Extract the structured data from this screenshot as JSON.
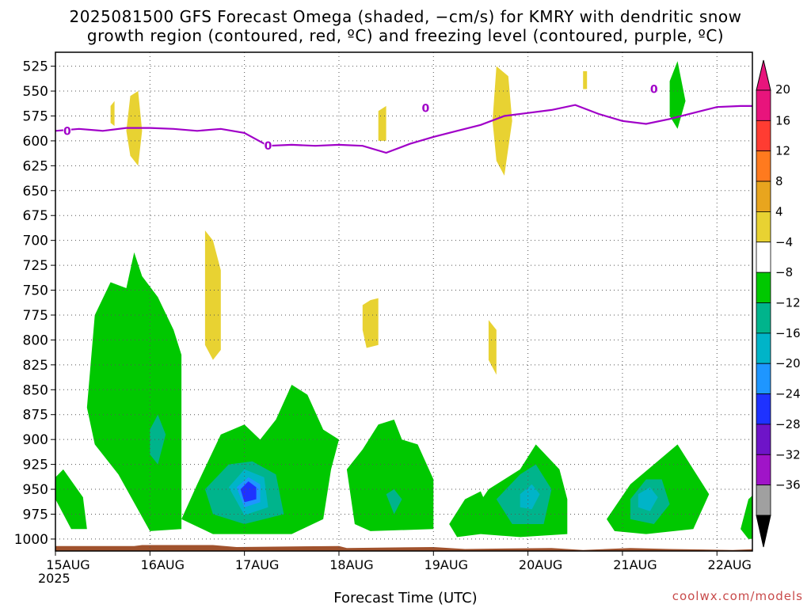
{
  "title_line1": "2025081500 GFS Forecast Omega (shaded, −cm/s) for KMRY with dendritic snow",
  "title_line2": "growth region (contoured, red, ºC) and freezing level (contoured, purple, ºC)",
  "credit": "coolwx.com/models",
  "colors": {
    "grid": "#555555",
    "freezing_line": "#a000c8",
    "terrain": "#a0522d"
  },
  "chart_data": {
    "type": "heatmap",
    "xlabel": "Forecast Time (UTC)",
    "ylabel": "",
    "x_ticks": [
      "15AUG",
      "16AUG",
      "17AUG",
      "18AUG",
      "19AUG",
      "20AUG",
      "21AUG",
      "22AUG"
    ],
    "x_sub_label": "2025",
    "x_range_hours": [
      0,
      177
    ],
    "y_ticks": [
      525,
      550,
      575,
      600,
      625,
      650,
      675,
      700,
      725,
      750,
      775,
      800,
      825,
      850,
      875,
      900,
      925,
      950,
      975,
      1000
    ],
    "y_range_hpa": [
      511,
      1012
    ],
    "grid": true,
    "colorbar": {
      "labels": [
        "20",
        "16",
        "12",
        "8",
        "4",
        "−4",
        "−8",
        "−12",
        "−16",
        "−20",
        "−24",
        "−28",
        "−32",
        "−36"
      ],
      "colors": [
        "#e8147c",
        "#ff3c32",
        "#ff7a1e",
        "#e8a51e",
        "#e8d232",
        "#ffffff",
        "#00c800",
        "#00b48c",
        "#00b4c8",
        "#1e96ff",
        "#1e32ff",
        "#6e14c8",
        "#a014c8",
        "#a0a0a0"
      ]
    },
    "freezing_level": {
      "label": "0",
      "label_at": [
        [
          3,
          590
        ],
        [
          54,
          605
        ],
        [
          94,
          567
        ],
        [
          152,
          548
        ]
      ],
      "points": [
        [
          0,
          590
        ],
        [
          6,
          588
        ],
        [
          12,
          590
        ],
        [
          18,
          587
        ],
        [
          24,
          587
        ],
        [
          30,
          588
        ],
        [
          36,
          590
        ],
        [
          42,
          588
        ],
        [
          48,
          592
        ],
        [
          54,
          605
        ],
        [
          60,
          604
        ],
        [
          66,
          605
        ],
        [
          72,
          604
        ],
        [
          78,
          605
        ],
        [
          84,
          612
        ],
        [
          90,
          603
        ],
        [
          96,
          596
        ],
        [
          102,
          590
        ],
        [
          108,
          584
        ],
        [
          114,
          575
        ],
        [
          120,
          572
        ],
        [
          126,
          569
        ],
        [
          132,
          564
        ],
        [
          138,
          573
        ],
        [
          144,
          580
        ],
        [
          150,
          583
        ],
        [
          156,
          578
        ],
        [
          162,
          572
        ],
        [
          168,
          566
        ],
        [
          174,
          565
        ],
        [
          180,
          565
        ],
        [
          186,
          563
        ],
        [
          192,
          558
        ],
        [
          198,
          553
        ],
        [
          204,
          550
        ],
        [
          210,
          550
        ],
        [
          216,
          550
        ],
        [
          219,
          541
        ],
        [
          222,
          550
        ],
        [
          228,
          549
        ],
        [
          234,
          548
        ],
        [
          240,
          549
        ],
        [
          246,
          550
        ],
        [
          252,
          550
        ],
        [
          258,
          549
        ],
        [
          264,
          550
        ],
        [
          272,
          555
        ]
      ]
    },
    "omega_regions": [
      {
        "bin": "-8 to -4",
        "color": "#00c800",
        "points": [
          [
            2,
            930
          ],
          [
            7,
            958
          ],
          [
            8,
            990
          ],
          [
            4,
            990
          ],
          [
            0,
            960
          ],
          [
            0,
            938
          ]
        ]
      },
      {
        "bin": "-8 to -4",
        "color": "#00c800",
        "points": [
          [
            8,
            868
          ],
          [
            10,
            775
          ],
          [
            14,
            742
          ],
          [
            18,
            748
          ],
          [
            20,
            712
          ],
          [
            22,
            736
          ],
          [
            26,
            757
          ],
          [
            30,
            790
          ],
          [
            32,
            815
          ],
          [
            32,
            990
          ],
          [
            24,
            992
          ],
          [
            16,
            935
          ],
          [
            10,
            905
          ]
        ]
      },
      {
        "bin": "-8 to -4",
        "color": "#00c800",
        "points": [
          [
            32,
            980
          ],
          [
            36,
            945
          ],
          [
            42,
            895
          ],
          [
            48,
            885
          ],
          [
            52,
            900
          ],
          [
            56,
            880
          ],
          [
            60,
            845
          ],
          [
            64,
            855
          ],
          [
            68,
            890
          ],
          [
            72,
            900
          ],
          [
            70,
            930
          ],
          [
            68,
            980
          ],
          [
            60,
            995
          ],
          [
            40,
            995
          ]
        ]
      },
      {
        "bin": "-8 to -4",
        "color": "#00c800",
        "points": [
          [
            74,
            930
          ],
          [
            78,
            910
          ],
          [
            82,
            885
          ],
          [
            86,
            880
          ],
          [
            88,
            900
          ],
          [
            92,
            905
          ],
          [
            96,
            940
          ],
          [
            96,
            990
          ],
          [
            80,
            992
          ],
          [
            76,
            985
          ]
        ]
      },
      {
        "bin": "-8 to -4",
        "color": "#00c800",
        "points": [
          [
            100,
            985
          ],
          [
            104,
            960
          ],
          [
            108,
            952
          ],
          [
            110,
            970
          ],
          [
            108,
            995
          ],
          [
            102,
            998
          ]
        ]
      },
      {
        "bin": "-8 to -4",
        "color": "#00c800",
        "points": [
          [
            104,
            985
          ],
          [
            110,
            950
          ],
          [
            118,
            930
          ],
          [
            122,
            905
          ],
          [
            128,
            930
          ],
          [
            130,
            960
          ],
          [
            130,
            995
          ],
          [
            118,
            998
          ],
          [
            108,
            995
          ]
        ]
      },
      {
        "bin": "-8 to -4",
        "color": "#00c800",
        "points": [
          [
            140,
            980
          ],
          [
            146,
            945
          ],
          [
            152,
            925
          ],
          [
            158,
            905
          ],
          [
            162,
            930
          ],
          [
            166,
            955
          ],
          [
            162,
            990
          ],
          [
            150,
            995
          ],
          [
            142,
            992
          ]
        ]
      },
      {
        "bin": "-8 to -4",
        "color": "#00c800",
        "points": [
          [
            174,
            990
          ],
          [
            176,
            960
          ],
          [
            180,
            945
          ],
          [
            186,
            940
          ],
          [
            188,
            965
          ],
          [
            186,
            998
          ],
          [
            176,
            1000
          ]
        ]
      },
      {
        "bin": "-8 to -4",
        "color": "#00c800",
        "points": [
          [
            156,
            540
          ],
          [
            158,
            520
          ],
          [
            160,
            560
          ],
          [
            158,
            588
          ],
          [
            156,
            575
          ]
        ]
      },
      {
        "bin": "-8 to -4",
        "color": "#00c800",
        "points": [
          [
            186,
            530
          ],
          [
            189,
            530
          ],
          [
            189,
            545
          ],
          [
            186,
            545
          ]
        ]
      },
      {
        "bin": "-8 to -4",
        "color": "#00c800",
        "points": [
          [
            221,
            600
          ],
          [
            224,
            600
          ],
          [
            224,
            685
          ],
          [
            221,
            685
          ]
        ]
      },
      {
        "bin": "-12 to -8",
        "color": "#00b48c",
        "points": [
          [
            38,
            950
          ],
          [
            44,
            925
          ],
          [
            50,
            922
          ],
          [
            56,
            935
          ],
          [
            58,
            975
          ],
          [
            48,
            985
          ],
          [
            40,
            975
          ]
        ]
      },
      {
        "bin": "-12 to -8",
        "color": "#00b48c",
        "points": [
          [
            24,
            890
          ],
          [
            26,
            875
          ],
          [
            28,
            895
          ],
          [
            26,
            925
          ],
          [
            24,
            915
          ]
        ]
      },
      {
        "bin": "-12 to -8",
        "color": "#00b48c",
        "points": [
          [
            112,
            960
          ],
          [
            118,
            935
          ],
          [
            122,
            925
          ],
          [
            126,
            950
          ],
          [
            124,
            985
          ],
          [
            116,
            985
          ]
        ]
      },
      {
        "bin": "-12 to -8",
        "color": "#00b48c",
        "points": [
          [
            146,
            960
          ],
          [
            150,
            940
          ],
          [
            154,
            940
          ],
          [
            156,
            965
          ],
          [
            152,
            985
          ],
          [
            146,
            980
          ]
        ]
      },
      {
        "bin": "-12 to -8",
        "color": "#00b48c",
        "points": [
          [
            178,
            965
          ],
          [
            182,
            955
          ],
          [
            184,
            970
          ],
          [
            182,
            985
          ],
          [
            178,
            985
          ]
        ]
      },
      {
        "bin": "-12 to -8",
        "color": "#00b48c",
        "points": [
          [
            84,
            955
          ],
          [
            86,
            950
          ],
          [
            88,
            960
          ],
          [
            86,
            975
          ]
        ]
      },
      {
        "bin": "-16 to -12",
        "color": "#00b4c8",
        "points": [
          [
            44,
            948
          ],
          [
            48,
            930
          ],
          [
            53,
            938
          ],
          [
            54,
            968
          ],
          [
            48,
            976
          ]
        ]
      },
      {
        "bin": "-16 to -12",
        "color": "#00b4c8",
        "points": [
          [
            118,
            955
          ],
          [
            121,
            945
          ],
          [
            123,
            955
          ],
          [
            121,
            970
          ],
          [
            118,
            968
          ]
        ]
      },
      {
        "bin": "-16 to -12",
        "color": "#00b4c8",
        "points": [
          [
            148,
            955
          ],
          [
            151,
            948
          ],
          [
            153,
            958
          ],
          [
            151,
            972
          ],
          [
            148,
            968
          ]
        ]
      },
      {
        "bin": "-20 to -16",
        "color": "#1e96ff",
        "points": [
          [
            46,
            948
          ],
          [
            49,
            938
          ],
          [
            52,
            945
          ],
          [
            52,
            963
          ],
          [
            48,
            968
          ]
        ]
      },
      {
        "bin": "-24 to -20",
        "color": "#1e32ff",
        "points": [
          [
            47,
            950
          ],
          [
            49,
            942
          ],
          [
            51,
            948
          ],
          [
            51,
            960
          ],
          [
            48,
            963
          ]
        ]
      },
      {
        "bin": "4 to 8",
        "color": "#e8d232",
        "points": [
          [
            19,
            555
          ],
          [
            21,
            550
          ],
          [
            22,
            590
          ],
          [
            21,
            625
          ],
          [
            19,
            615
          ],
          [
            18,
            590
          ]
        ]
      },
      {
        "bin": "4 to 8",
        "color": "#e8d232",
        "points": [
          [
            14,
            565
          ],
          [
            15,
            560
          ],
          [
            15,
            585
          ],
          [
            14,
            582
          ]
        ]
      },
      {
        "bin": "4 to 8",
        "color": "#e8d232",
        "points": [
          [
            38,
            690
          ],
          [
            40,
            700
          ],
          [
            42,
            730
          ],
          [
            42,
            810
          ],
          [
            40,
            820
          ],
          [
            38,
            805
          ],
          [
            38,
            745
          ]
        ]
      },
      {
        "bin": "4 to 8",
        "color": "#e8d232",
        "points": [
          [
            82,
            570
          ],
          [
            84,
            565
          ],
          [
            84,
            600
          ],
          [
            82,
            600
          ]
        ]
      },
      {
        "bin": "4 to 8",
        "color": "#e8d232",
        "points": [
          [
            78,
            765
          ],
          [
            80,
            760
          ],
          [
            82,
            758
          ],
          [
            82,
            805
          ],
          [
            79,
            808
          ],
          [
            78,
            790
          ]
        ]
      },
      {
        "bin": "4 to 8",
        "color": "#e8d232",
        "points": [
          [
            112,
            525
          ],
          [
            115,
            535
          ],
          [
            116,
            580
          ],
          [
            114,
            635
          ],
          [
            112,
            620
          ],
          [
            111,
            580
          ]
        ]
      },
      {
        "bin": "4 to 8",
        "color": "#e8d232",
        "points": [
          [
            110,
            780
          ],
          [
            112,
            790
          ],
          [
            112,
            835
          ],
          [
            110,
            820
          ]
        ]
      },
      {
        "bin": "4 to 8",
        "color": "#e8d232",
        "points": [
          [
            134,
            530
          ],
          [
            135,
            530
          ],
          [
            135,
            548
          ],
          [
            134,
            548
          ]
        ]
      },
      {
        "bin": "4 to 8",
        "color": "#e8d232",
        "points": [
          [
            242,
            827
          ],
          [
            245,
            827
          ],
          [
            245,
            835
          ],
          [
            242,
            835
          ]
        ]
      }
    ],
    "terrain_pressure": [
      [
        0,
        1007
      ],
      [
        20,
        1007
      ],
      [
        22,
        1006
      ],
      [
        40,
        1006
      ],
      [
        46,
        1008
      ],
      [
        72,
        1007
      ],
      [
        74,
        1009
      ],
      [
        96,
        1008
      ],
      [
        104,
        1010
      ],
      [
        126,
        1009
      ],
      [
        134,
        1011
      ],
      [
        146,
        1009
      ],
      [
        156,
        1010
      ],
      [
        172,
        1011
      ],
      [
        186,
        1009
      ],
      [
        200,
        1010
      ],
      [
        210,
        1009
      ],
      [
        216,
        1008
      ],
      [
        246,
        1008
      ],
      [
        256,
        1006
      ],
      [
        272,
        1006
      ]
    ]
  }
}
